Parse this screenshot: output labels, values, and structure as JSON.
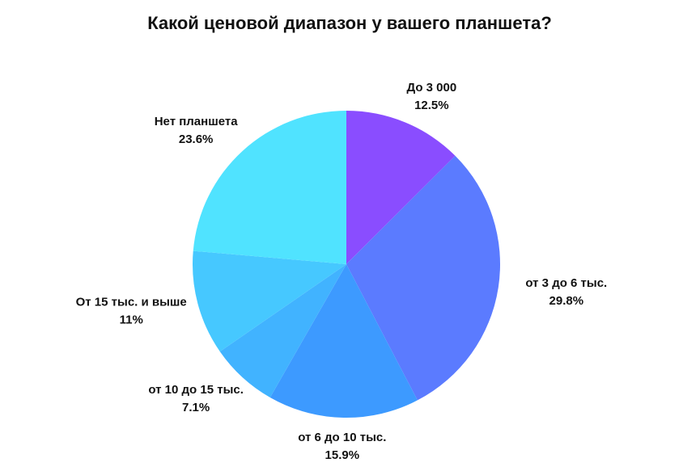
{
  "chart_data": {
    "type": "pie",
    "title": "Какой ценовой диапазон у вашего планшета?",
    "categories": [
      "До 3 000",
      "от 3 до 6 тыс.",
      "от 6 до 10 тыс.",
      "от 10 до 15 тыс.",
      "От 15 тыс. и выше",
      "Нет планшета"
    ],
    "values": [
      12.5,
      29.8,
      15.9,
      7.1,
      11,
      23.6
    ],
    "value_labels": [
      "12.5%",
      "29.8%",
      "15.9%",
      "7.1%",
      "11%",
      "23.6%"
    ],
    "colors": [
      "#8a4dff",
      "#5b7bff",
      "#3d9aff",
      "#41b3ff",
      "#46c8ff",
      "#50e3ff"
    ]
  }
}
